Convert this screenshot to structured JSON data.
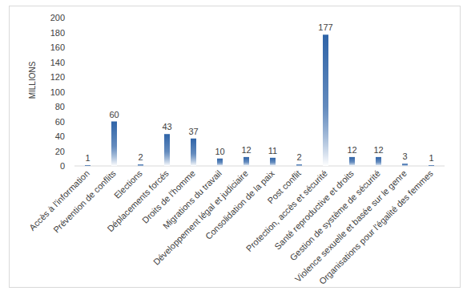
{
  "chart_data": {
    "type": "bar",
    "ylabel": "MILLIONS",
    "categories": [
      "Accès à l'information",
      "Prévention de conflits",
      "Elections",
      "Déplacements forcés",
      "Droits de l'homme",
      "Migrations du travail",
      "Développement légal et judiciaire",
      "Consolidation de la paix",
      "Post conflit",
      "Protection, accès et sécurité",
      "Santé reproductive et droits",
      "Gestion de système de sécurité",
      "Violence sexuelle et basée sur le genre",
      "Organisations pour l'égalité des femmes"
    ],
    "values": [
      1,
      60,
      2,
      43,
      37,
      10,
      12,
      11,
      2,
      177,
      12,
      12,
      3,
      1
    ],
    "color": "#2f64a8",
    "ylim": [
      0,
      200
    ],
    "yticks": [
      0,
      20,
      40,
      60,
      80,
      100,
      120,
      140,
      160,
      180,
      200
    ],
    "grid": false,
    "data_labels": true
  }
}
